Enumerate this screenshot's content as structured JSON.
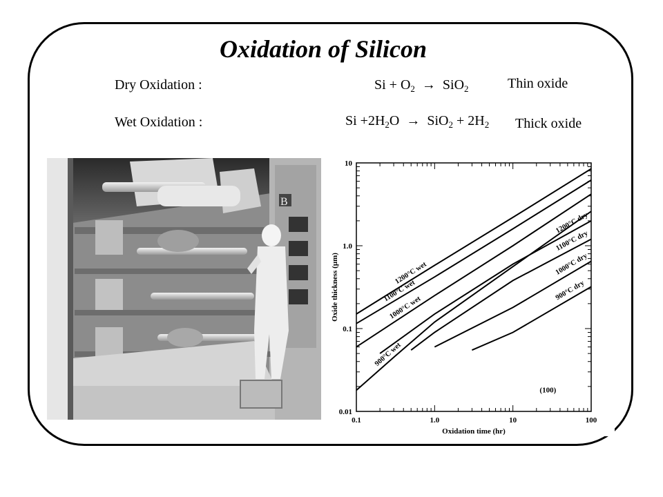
{
  "slide": {
    "title": "Oxidation of Silicon",
    "dry": {
      "label": "Dry Oxidation :",
      "eq_pre": "Si + O",
      "eq_sub1": "2",
      "eq_mid": "SiO",
      "eq_sub2": "2",
      "note": "Thin oxide"
    },
    "wet": {
      "label": "Wet Oxidation :",
      "eq_pre": "Si +2H",
      "eq_sub1": "2",
      "eq_o": "O",
      "eq_mid": "SiO",
      "eq_sub2": "2",
      "eq_plus": " + 2H",
      "eq_sub3": "2",
      "note": "Thick oxide"
    },
    "arrow_glyph": "→",
    "photo_label": "B"
  },
  "chart_data": {
    "type": "line",
    "xlabel": "Oxidation time (hr)",
    "ylabel": "Oxide thickness (µm)",
    "xscale": "log",
    "yscale": "log",
    "xlim": [
      0.1,
      100
    ],
    "ylim": [
      0.01,
      10
    ],
    "x_ticks": [
      "0.1",
      "1.0",
      "10",
      "100"
    ],
    "y_ticks": [
      "0.01",
      "0.1",
      "1.0",
      "10"
    ],
    "annotation": "(100)",
    "series": [
      {
        "name": "1200°C wet",
        "x": [
          0.1,
          1,
          10,
          100
        ],
        "y": [
          0.15,
          0.58,
          2.2,
          8.5
        ]
      },
      {
        "name": "1100°C wet",
        "x": [
          0.1,
          1,
          10,
          100
        ],
        "y": [
          0.115,
          0.42,
          1.6,
          6.2
        ]
      },
      {
        "name": "1000°C wet",
        "x": [
          0.1,
          1,
          10,
          100
        ],
        "y": [
          0.06,
          0.25,
          1.0,
          4.2
        ]
      },
      {
        "name": "900°C wet",
        "x": [
          0.1,
          0.3,
          1,
          10,
          100
        ],
        "y": [
          0.018,
          0.045,
          0.12,
          0.56,
          2.6
        ]
      },
      {
        "name": "1200°C dry",
        "x": [
          0.2,
          1,
          10,
          100
        ],
        "y": [
          0.05,
          0.15,
          0.6,
          2.0
        ]
      },
      {
        "name": "1100°C dry",
        "x": [
          0.5,
          1,
          10,
          100
        ],
        "y": [
          0.055,
          0.09,
          0.38,
          1.2
        ]
      },
      {
        "name": "1000°C dry",
        "x": [
          1,
          10,
          100
        ],
        "y": [
          0.06,
          0.18,
          0.65
        ]
      },
      {
        "name": "900°C dry",
        "x": [
          3,
          10,
          100
        ],
        "y": [
          0.055,
          0.09,
          0.32
        ]
      }
    ]
  }
}
